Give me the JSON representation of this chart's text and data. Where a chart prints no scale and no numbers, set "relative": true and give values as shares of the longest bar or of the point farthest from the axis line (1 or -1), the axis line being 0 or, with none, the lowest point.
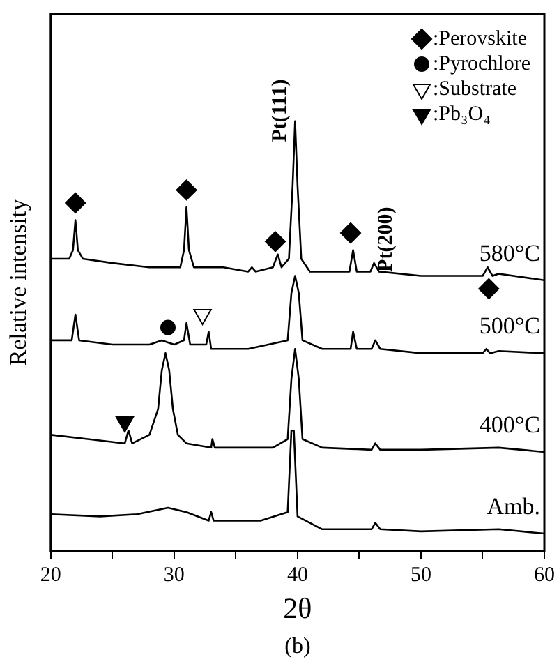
{
  "chart_data": {
    "type": "line",
    "relative": true,
    "xlabel": "2θ",
    "ylabel": "Relative intensity",
    "xlim": [
      20,
      60
    ],
    "xticks": [
      20,
      {
        "value": 25,
        "label": null
      },
      30,
      {
        "value": 35,
        "label": null
      },
      40,
      {
        "value": 45,
        "label": null
      },
      50,
      {
        "value": 55,
        "label": null
      },
      60
    ],
    "legend": "top right",
    "series": [
      {
        "name": "580°C",
        "color": "#000000",
        "x": [
          20,
          21.5,
          21.8,
          22.0,
          22.2,
          22.6,
          25,
          28,
          30.5,
          30.8,
          31.0,
          31.2,
          31.6,
          34,
          36,
          36.3,
          36.6,
          38.0,
          38.4,
          38.7,
          39.3,
          39.6,
          39.8,
          40.0,
          40.3,
          41,
          44.2,
          44.5,
          44.8,
          45.9,
          46.2,
          46.6,
          50,
          55,
          55.4,
          55.8,
          56.3,
          60
        ],
        "values": [
          0.68,
          0.68,
          0.7,
          0.77,
          0.7,
          0.68,
          0.67,
          0.66,
          0.66,
          0.7,
          0.8,
          0.7,
          0.66,
          0.66,
          0.65,
          0.66,
          0.65,
          0.66,
          0.69,
          0.66,
          0.68,
          0.85,
          1.0,
          0.85,
          0.68,
          0.65,
          0.65,
          0.7,
          0.65,
          0.65,
          0.67,
          0.65,
          0.64,
          0.64,
          0.66,
          0.64,
          0.645,
          0.63
        ]
      },
      {
        "name": "500°C",
        "color": "#000000",
        "x": [
          20,
          21.7,
          22.0,
          22.3,
          25,
          28,
          29,
          30,
          30.8,
          31.0,
          31.3,
          32.6,
          32.8,
          33.0,
          36,
          39.2,
          39.5,
          39.8,
          40.1,
          40.4,
          42,
          44.3,
          44.5,
          44.8,
          46.0,
          46.3,
          46.7,
          50,
          55,
          55.3,
          55.6,
          56.3,
          60
        ],
        "values": [
          0.49,
          0.49,
          0.55,
          0.49,
          0.48,
          0.48,
          0.49,
          0.48,
          0.49,
          0.53,
          0.48,
          0.48,
          0.51,
          0.47,
          0.47,
          0.49,
          0.6,
          0.64,
          0.6,
          0.49,
          0.47,
          0.47,
          0.51,
          0.47,
          0.47,
          0.49,
          0.47,
          0.46,
          0.46,
          0.47,
          0.46,
          0.465,
          0.46
        ]
      },
      {
        "name": "400°C",
        "color": "#000000",
        "x": [
          20,
          23,
          26.0,
          26.3,
          26.6,
          28,
          28.7,
          29.0,
          29.3,
          29.6,
          29.9,
          30.3,
          31,
          33,
          33.1,
          33.3,
          35,
          38,
          39.2,
          39.5,
          39.8,
          40.1,
          40.4,
          42,
          46.0,
          46.3,
          46.7,
          50,
          56.3,
          60
        ],
        "values": [
          0.27,
          0.26,
          0.25,
          0.28,
          0.25,
          0.27,
          0.33,
          0.42,
          0.46,
          0.42,
          0.33,
          0.27,
          0.25,
          0.24,
          0.26,
          0.24,
          0.24,
          0.24,
          0.26,
          0.4,
          0.47,
          0.4,
          0.26,
          0.24,
          0.235,
          0.25,
          0.235,
          0.235,
          0.24,
          0.23
        ]
      },
      {
        "name": "Amb.",
        "color": "#000000",
        "x": [
          20,
          24,
          27,
          29.5,
          31,
          32.8,
          33.0,
          33.2,
          37,
          39.2,
          39.5,
          39.7,
          40.0,
          42,
          46.0,
          46.3,
          46.7,
          50,
          56.3,
          60
        ],
        "values": [
          0.085,
          0.08,
          0.085,
          0.1,
          0.09,
          0.07,
          0.09,
          0.07,
          0.07,
          0.09,
          0.28,
          0.28,
          0.08,
          0.05,
          0.05,
          0.065,
          0.05,
          0.045,
          0.05,
          0.04
        ]
      },
      {
        "name": ":Perovskite",
        "type": "scatter",
        "marker": "diamond",
        "color": "#000000",
        "x": [
          22.0,
          31.0,
          38.2,
          44.3,
          55.5
        ],
        "values": [
          0.81,
          0.84,
          0.72,
          0.74,
          0.61
        ]
      },
      {
        "name": ":Pyrochlore",
        "type": "scatter",
        "marker": "circle",
        "color": "#000000",
        "x": [
          29.5
        ],
        "values": [
          0.52
        ]
      },
      {
        "name": ":Substrate",
        "type": "scatter",
        "marker": "triangle",
        "color": "#ffffff",
        "x": [
          32.3
        ],
        "values": [
          0.55
        ]
      },
      {
        "name": ":Pb₃O₄",
        "type": "scatter",
        "marker": "triangle",
        "color": "#000000",
        "x": [
          26.0
        ],
        "values": [
          0.3
        ]
      }
    ],
    "annotations": [
      "Pt(111)",
      "Pt(200)",
      "(b)"
    ]
  }
}
